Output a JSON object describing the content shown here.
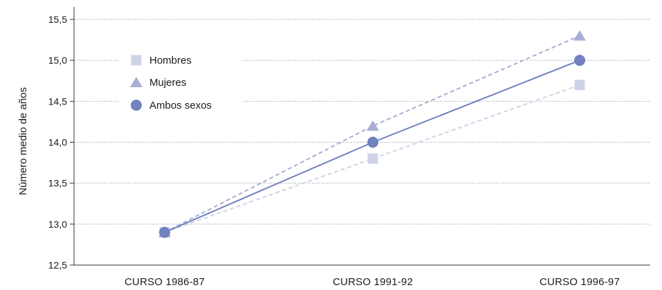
{
  "chart_data": {
    "type": "line",
    "ylabel": "Número medio de años",
    "ylim": [
      12.5,
      15.5
    ],
    "yticks": [
      "12,5",
      "13,0",
      "13,5",
      "14,0",
      "14,5",
      "15,0",
      "15,5"
    ],
    "ytick_values": [
      12.5,
      13.0,
      13.5,
      14.0,
      14.5,
      15.0,
      15.5
    ],
    "categories": [
      "CURSO 1986-87",
      "CURSO 1991-92",
      "CURSO 1996-97"
    ],
    "grid": true,
    "legend_position": "top-left",
    "series": [
      {
        "name": "Hombres",
        "values": [
          12.9,
          13.8,
          14.7
        ],
        "color": "#cfd3e8",
        "marker": "square",
        "line": "dashed"
      },
      {
        "name": "Mujeres",
        "values": [
          12.9,
          14.2,
          15.3
        ],
        "color": "#a9aed3",
        "marker": "triangle",
        "line": "dashed"
      },
      {
        "name": "Ambos sexos",
        "values": [
          12.9,
          14.0,
          15.0
        ],
        "color": "#7182bf",
        "marker": "circle",
        "line": "solid"
      }
    ]
  }
}
